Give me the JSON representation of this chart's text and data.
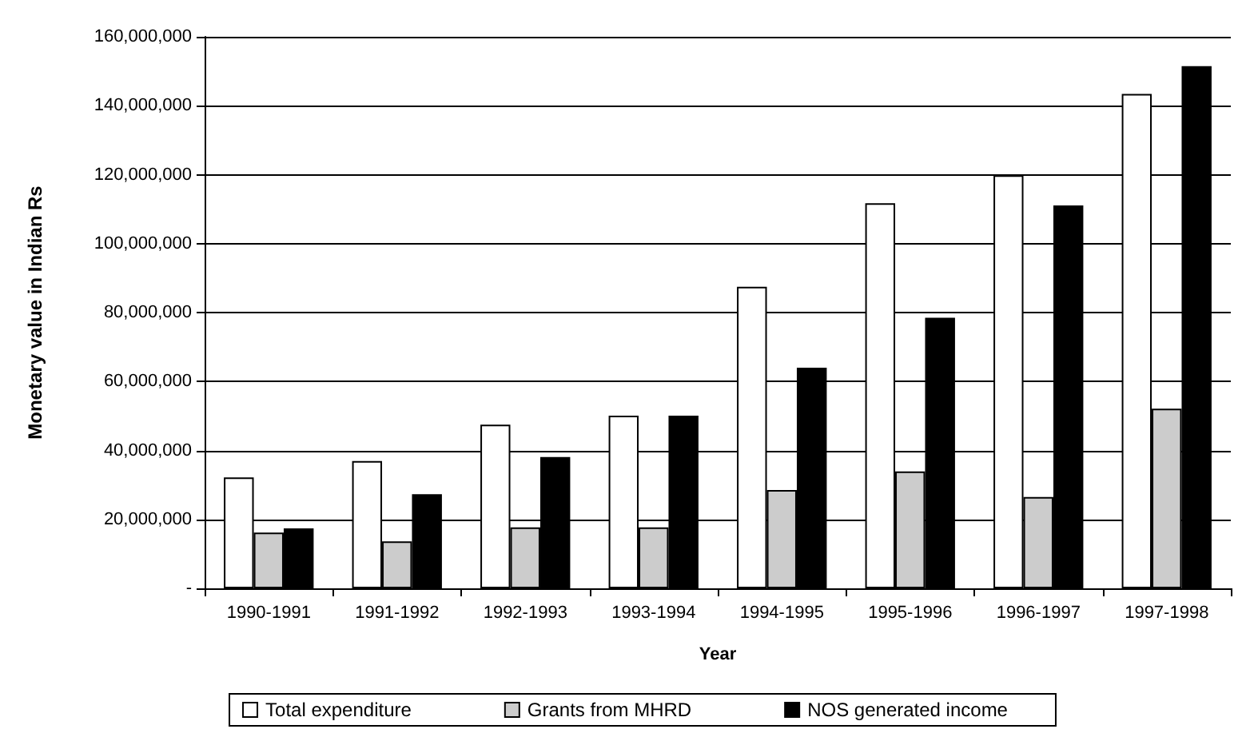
{
  "chart_data": {
    "type": "bar",
    "xlabel": "Year",
    "ylabel": "Monetary value in Indian Rs",
    "categories": [
      "1990-1991",
      "1991-1992",
      "1992-1993",
      "1993-1994",
      "1994-1995",
      "1995-1996",
      "1996-1997",
      "1997-1998"
    ],
    "series": [
      {
        "name": "Total expenditure",
        "color": "#ffffff",
        "values": [
          32200000,
          36900000,
          47500000,
          50100000,
          87500000,
          111700000,
          119800000,
          143400000
        ]
      },
      {
        "name": "Grants from MHRD",
        "color": "#cccccc",
        "values": [
          16200000,
          13600000,
          17700000,
          17700000,
          28500000,
          33900000,
          26500000,
          52100000
        ]
      },
      {
        "name": "NOS generated income",
        "color": "#000000",
        "values": [
          17400000,
          27300000,
          38100000,
          50100000,
          64000000,
          78500000,
          111100000,
          151500000
        ]
      }
    ],
    "ylim": [
      0,
      160000000
    ],
    "yticks": [
      {
        "value": 0,
        "label": "-"
      },
      {
        "value": 20000000,
        "label": "20,000,000"
      },
      {
        "value": 40000000,
        "label": "40,000,000"
      },
      {
        "value": 60000000,
        "label": "60,000,000"
      },
      {
        "value": 80000000,
        "label": "80,000,000"
      },
      {
        "value": 100000000,
        "label": "100,000,000"
      },
      {
        "value": 120000000,
        "label": "120,000,000"
      },
      {
        "value": 140000000,
        "label": "140,000,000"
      },
      {
        "value": 160000000,
        "label": "160,000,000"
      }
    ],
    "grid": "y",
    "legend": "bottom"
  }
}
